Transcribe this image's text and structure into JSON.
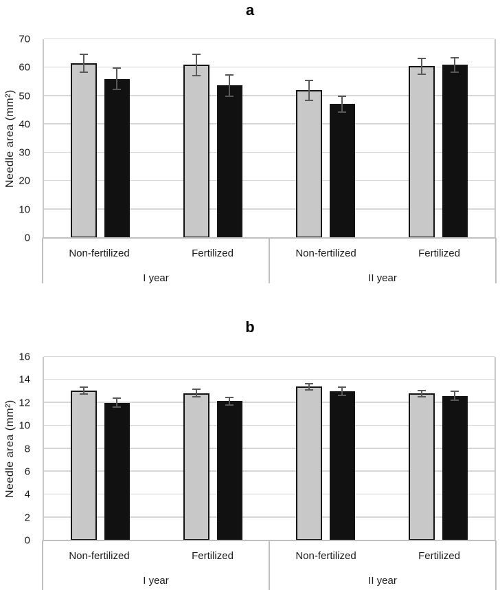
{
  "figure": {
    "panels": [
      "a",
      "b"
    ]
  },
  "chart_data": [
    {
      "type": "bar",
      "title": "a",
      "xlabel": "",
      "ylabel": "Needle area (mm²)",
      "ylim": [
        0,
        70
      ],
      "yticks": [
        0,
        10,
        20,
        30,
        40,
        50,
        60,
        70
      ],
      "grid": true,
      "legend": "none",
      "error_bars": true,
      "groups": [
        {
          "label": "I year",
          "categories": [
            "Non-fertilized",
            "Fertilized"
          ]
        },
        {
          "label": "II year",
          "categories": [
            "Non-fertilized",
            "Fertilized"
          ]
        }
      ],
      "categories": [
        "Non-fertilized",
        "Fertilized",
        "Non-fertilized",
        "Fertilized"
      ],
      "series": [
        {
          "name": "gray bars",
          "color": "#c8c8c8",
          "values": [
            61.5,
            61.0,
            52.0,
            60.5
          ],
          "errors": [
            3.3,
            4.0,
            3.8,
            3.0
          ]
        },
        {
          "name": "black bars",
          "color": "#111111",
          "values": [
            56.0,
            53.7,
            47.2,
            61.0
          ],
          "errors": [
            4.0,
            4.0,
            3.0,
            2.8
          ]
        }
      ]
    },
    {
      "type": "bar",
      "title": "b",
      "xlabel": "",
      "ylabel": "Needle area (mm²)",
      "ylim": [
        0,
        16
      ],
      "yticks": [
        0,
        2,
        4,
        6,
        8,
        10,
        12,
        14,
        16
      ],
      "grid": true,
      "legend": "none",
      "error_bars": true,
      "groups": [
        {
          "label": "I year",
          "categories": [
            "Non-fertilized",
            "Fertilized"
          ]
        },
        {
          "label": "II year",
          "categories": [
            "Non-fertilized",
            "Fertilized"
          ]
        }
      ],
      "categories": [
        "Non-fertilized",
        "Fertilized",
        "Non-fertilized",
        "Fertilized"
      ],
      "series": [
        {
          "name": "gray bars",
          "color": "#c8c8c8",
          "values": [
            13.05,
            12.85,
            13.4,
            12.8
          ],
          "errors": [
            0.35,
            0.4,
            0.35,
            0.35
          ]
        },
        {
          "name": "black bars",
          "color": "#111111",
          "values": [
            12.0,
            12.15,
            13.0,
            12.6
          ],
          "errors": [
            0.45,
            0.4,
            0.4,
            0.45
          ]
        }
      ]
    }
  ]
}
